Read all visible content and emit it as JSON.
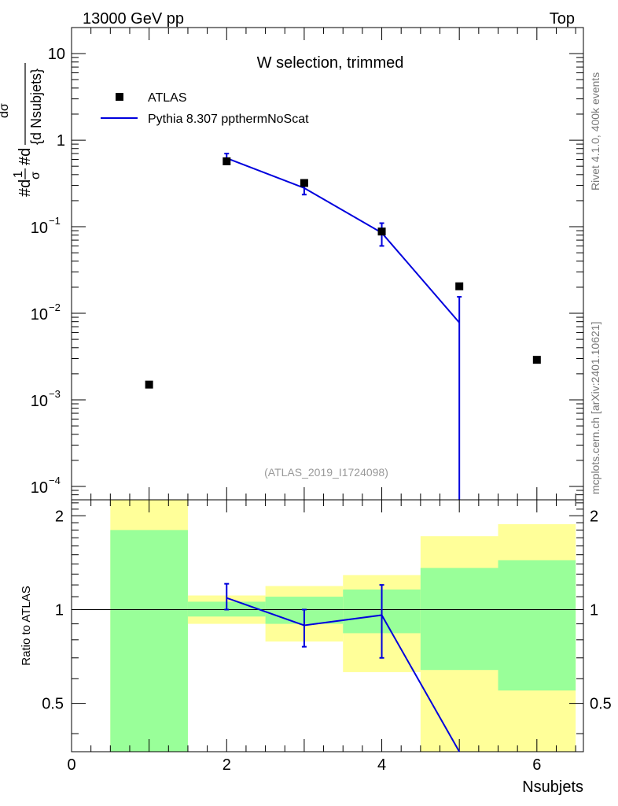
{
  "header": {
    "left": "13000 GeV pp",
    "right": "Top"
  },
  "side_labels": {
    "rivet": "Rivet 4.1.0,  400k events",
    "mcplots": "mcplots.cern.ch [arXiv:2401.10621]"
  },
  "chart_data": [
    {
      "type": "scatter",
      "panel": "main",
      "title": "W selection, trimmed",
      "watermark": "(ATLAS_2019_I1724098)",
      "ylabel_parts": [
        "#d",
        "1",
        "σ",
        "#d",
        "dσ",
        "{d Nsubjets}"
      ],
      "yscale": "log",
      "ylim": [
        7e-05,
        20
      ],
      "xlim": [
        0,
        6.6
      ],
      "legend": [
        {
          "name": "ATLAS",
          "marker": "square",
          "color": "#000000"
        },
        {
          "name": "Pythia 8.307 ppthermNoScat",
          "marker": "line",
          "color": "#0000dd"
        }
      ],
      "y_ticks": [
        {
          "value": 10,
          "label": "10"
        },
        {
          "value": 1,
          "label": "1"
        },
        {
          "value": 0.1,
          "base": "10",
          "exp": "−1"
        },
        {
          "value": 0.01,
          "base": "10",
          "exp": "−2"
        },
        {
          "value": 0.001,
          "base": "10",
          "exp": "−3"
        },
        {
          "value": 0.0001,
          "base": "10",
          "exp": "−4"
        }
      ],
      "atlas": {
        "x": [
          1,
          2,
          3,
          4,
          5,
          6
        ],
        "y": [
          0.0015,
          0.57,
          0.32,
          0.088,
          0.0205,
          0.0029
        ]
      },
      "pythia": {
        "x": [
          2,
          3,
          4,
          5
        ],
        "y": [
          0.62,
          0.28,
          0.085,
          0.0078
        ],
        "err_low": [
          0.56,
          0.235,
          0.06,
          1e-05
        ],
        "err_high": [
          0.7,
          0.325,
          0.11,
          0.0155
        ]
      }
    },
    {
      "type": "ratio",
      "panel": "ratio",
      "ylabel": "Ratio to ATLAS",
      "xlabel": "Nsubjets",
      "ylim": [
        0.35,
        2.25
      ],
      "xlim": [
        0,
        6.6
      ],
      "x_ticks": [
        "0",
        "2",
        "4",
        "6"
      ],
      "y_ticks": [
        "0.5",
        "1",
        "2"
      ],
      "bands": [
        {
          "x0": 0.5,
          "x1": 1.5,
          "y_lo": 0.35,
          "y_hi": 2.25,
          "g_lo": 0.35,
          "g_hi": 1.8
        },
        {
          "x0": 1.5,
          "x1": 2.5,
          "y_lo": 0.9,
          "y_hi": 1.11,
          "g_lo": 0.95,
          "g_hi": 1.06
        },
        {
          "x0": 2.5,
          "x1": 3.5,
          "y_lo": 0.79,
          "y_hi": 1.19,
          "g_lo": 0.9,
          "g_hi": 1.1
        },
        {
          "x0": 3.5,
          "x1": 4.5,
          "y_lo": 0.63,
          "y_hi": 1.29,
          "g_lo": 0.84,
          "g_hi": 1.16
        },
        {
          "x0": 4.5,
          "x1": 5.5,
          "y_lo": 0.35,
          "y_hi": 1.72,
          "g_lo": 0.64,
          "g_hi": 1.36
        },
        {
          "x0": 5.5,
          "x1": 6.5,
          "y_lo": 0.35,
          "y_hi": 1.88,
          "g_lo": 0.55,
          "g_hi": 1.44
        }
      ],
      "pythia": {
        "x": [
          2,
          3,
          4,
          5.0
        ],
        "y": [
          1.09,
          0.89,
          0.96,
          0.35
        ],
        "err_low": [
          1.0,
          0.76,
          0.7,
          null
        ],
        "err_high": [
          1.21,
          1.0,
          1.2,
          null
        ]
      },
      "reference": 1
    }
  ]
}
